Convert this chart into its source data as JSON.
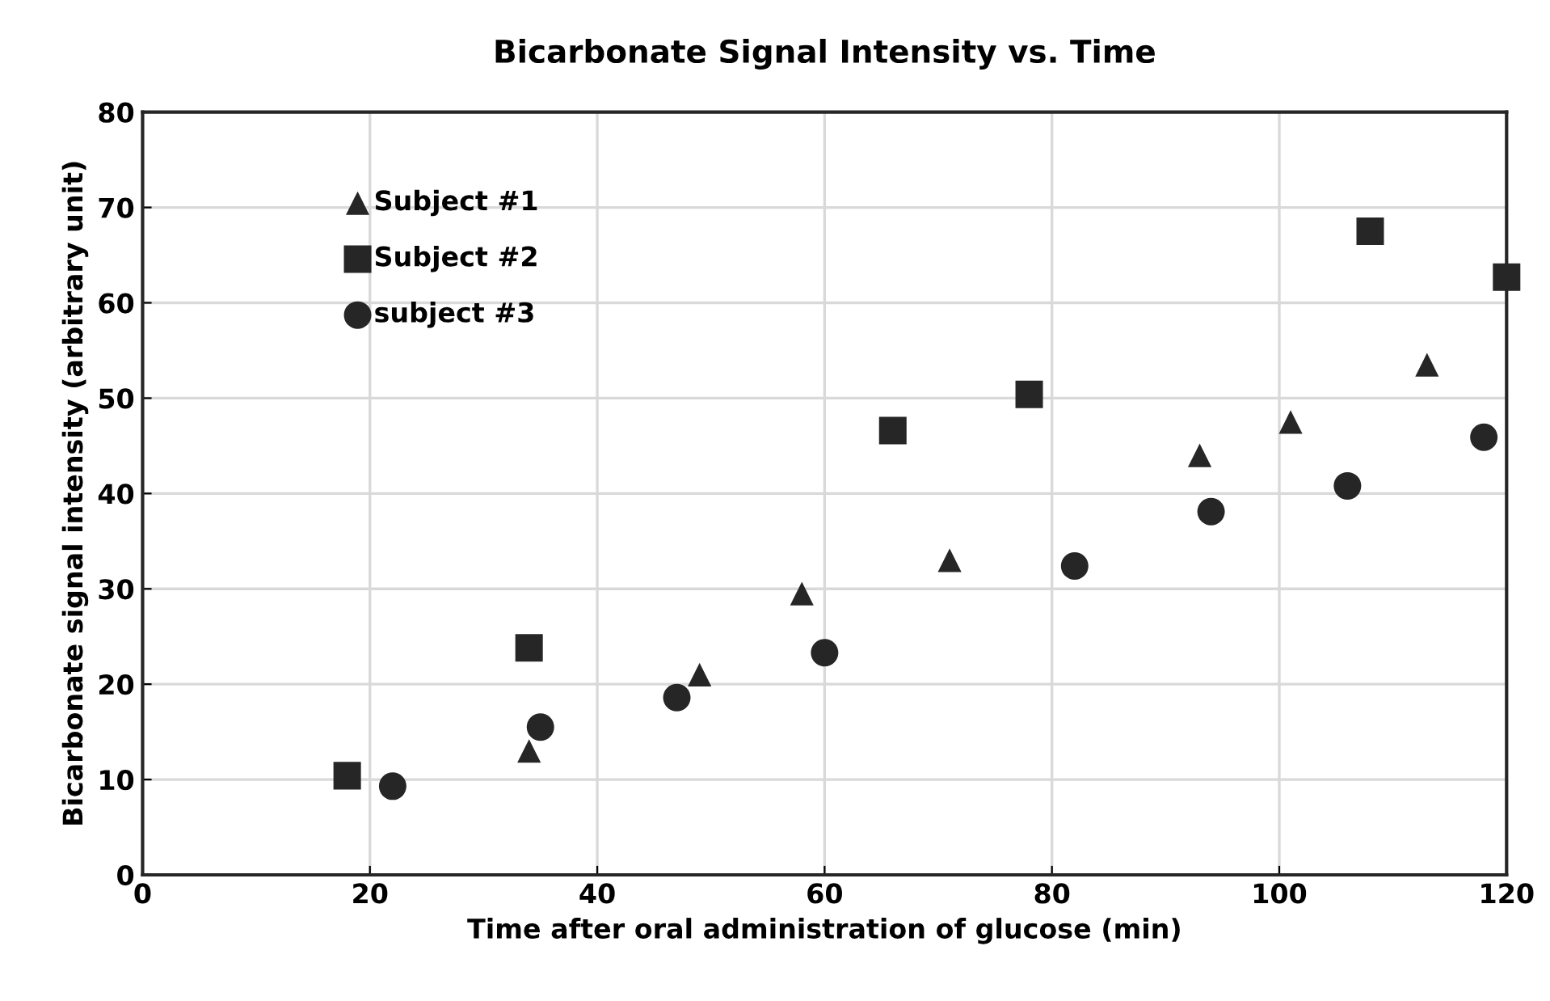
{
  "chart_data": {
    "type": "scatter",
    "title": "Bicarbonate Signal Intensity vs. Time",
    "xlabel": "Time after oral administration of glucose (min)",
    "ylabel": "Bicarbonate signal intensity (arbitrary unit)",
    "series": [
      {
        "name": "Subject #1",
        "color": "#262626",
        "marker": "triangle",
        "x": [
          34,
          49,
          58,
          71,
          93,
          101,
          113
        ],
        "values": [
          13,
          21,
          29.5,
          33,
          44,
          47.5,
          53.5
        ]
      },
      {
        "name": "Subject #2",
        "color": "#262626",
        "marker": "square",
        "x": [
          18,
          34,
          66,
          78,
          108,
          120
        ],
        "values": [
          10.4,
          23.8,
          46.6,
          50.4,
          67.5,
          62.7
        ]
      },
      {
        "name": "subject #3",
        "color": "#262626",
        "marker": "circle",
        "x": [
          22,
          35,
          47,
          60,
          82,
          94,
          106,
          118
        ],
        "values": [
          9.3,
          15.5,
          18.6,
          23.3,
          32.4,
          38.1,
          40.8,
          45.9
        ]
      }
    ],
    "xlim": [
      0,
      120
    ],
    "xticks": [
      0,
      20,
      40,
      60,
      80,
      100,
      120
    ],
    "ylim": [
      0,
      80
    ],
    "yticks": [
      0,
      10,
      20,
      30,
      40,
      50,
      60,
      70,
      80
    ],
    "grid": true,
    "legend": "top left"
  }
}
